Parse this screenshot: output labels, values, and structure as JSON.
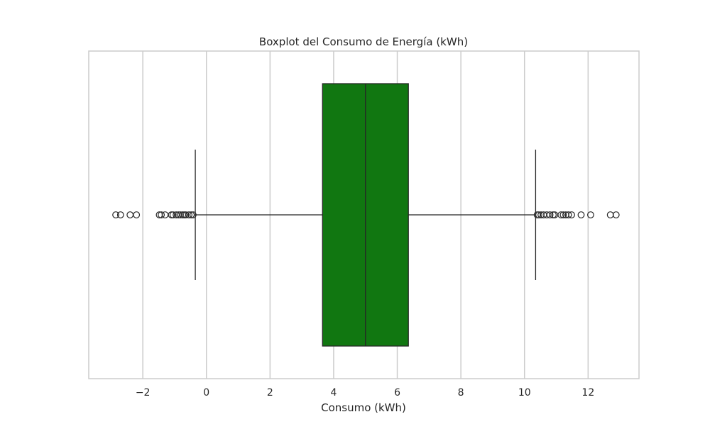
{
  "chart_data": {
    "type": "box",
    "title": "Boxplot del Consumo de Energía (kWh)",
    "xlabel": "Consumo (kWh)",
    "ylabel": "",
    "orientation": "horizontal",
    "xlim": [
      -3.7,
      13.6
    ],
    "x_ticks": [
      -2,
      0,
      2,
      4,
      6,
      8,
      10,
      12
    ],
    "x_tick_labels": [
      "−2",
      "0",
      "2",
      "4",
      "6",
      "8",
      "10",
      "12"
    ],
    "grid": "vertical",
    "box_color": "#117711",
    "edge_color": "#262626",
    "grid_color": "#cccccc",
    "series": [
      {
        "whisker_low": -0.35,
        "q1": 3.65,
        "median": 5.0,
        "q3": 6.35,
        "whisker_high": 10.35,
        "outliers": [
          -2.85,
          -2.7,
          -2.4,
          -2.2,
          -1.48,
          -1.42,
          -1.3,
          -1.1,
          -1.05,
          -0.95,
          -0.88,
          -0.82,
          -0.75,
          -0.7,
          -0.65,
          -0.55,
          -0.48,
          -0.42,
          10.4,
          10.45,
          10.52,
          10.6,
          10.7,
          10.8,
          10.9,
          10.95,
          11.15,
          11.22,
          11.3,
          11.38,
          11.48,
          11.78,
          12.08,
          12.7,
          12.88
        ]
      }
    ]
  }
}
